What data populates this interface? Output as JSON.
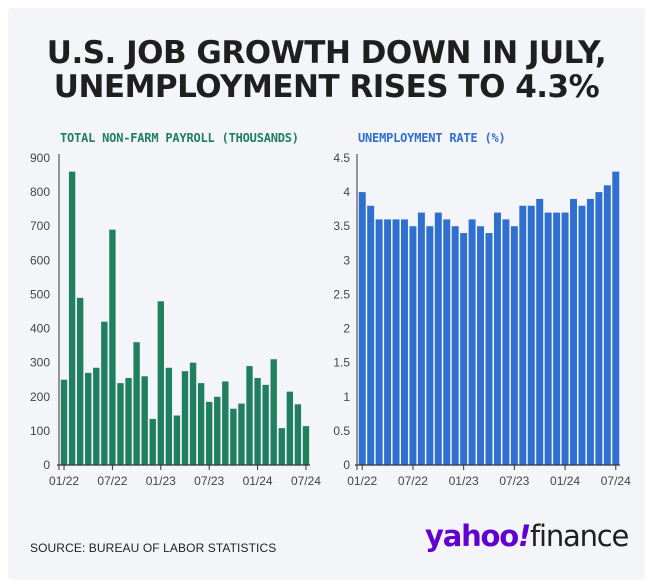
{
  "headline": {
    "line1": "U.S. JOB GROWTH DOWN IN JULY,",
    "line2": "UNEMPLOYMENT RISES TO 4.3%"
  },
  "footer": {
    "source": "SOURCE: BUREAU OF LABOR STATISTICS",
    "brand_yahoo": "yahoo",
    "brand_bang": "!",
    "brand_finance": "finance"
  },
  "colors": {
    "payroll": "#1f7f5f",
    "unemployment": "#2f6fd0",
    "axis": "#333333"
  },
  "chart_data": [
    {
      "type": "bar",
      "title": "TOTAL NON-FARM PAYROLL (THOUSANDS)",
      "xlabel": "",
      "ylabel": "",
      "ylim": [
        0,
        900
      ],
      "yticks": [
        0,
        100,
        200,
        300,
        400,
        500,
        600,
        700,
        800,
        900
      ],
      "xtick_labels": [
        "01/22",
        "07/22",
        "01/23",
        "07/23",
        "01/24",
        "07/24"
      ],
      "xtick_indices": [
        0,
        6,
        12,
        18,
        24,
        30
      ],
      "categories": [
        "01/22",
        "02/22",
        "03/22",
        "04/22",
        "05/22",
        "06/22",
        "07/22",
        "08/22",
        "09/22",
        "10/22",
        "11/22",
        "12/22",
        "01/23",
        "02/23",
        "03/23",
        "04/23",
        "05/23",
        "06/23",
        "07/23",
        "08/23",
        "09/23",
        "10/23",
        "11/23",
        "12/23",
        "01/24",
        "02/24",
        "03/24",
        "04/24",
        "05/24",
        "06/24",
        "07/24"
      ],
      "values": [
        250,
        860,
        490,
        270,
        285,
        420,
        690,
        240,
        255,
        360,
        260,
        135,
        480,
        285,
        145,
        275,
        300,
        240,
        185,
        200,
        245,
        165,
        180,
        290,
        255,
        235,
        310,
        108,
        215,
        178,
        114
      ]
    },
    {
      "type": "bar",
      "title": "UNEMPLOYMENT RATE (%)",
      "xlabel": "",
      "ylabel": "",
      "ylim": [
        0,
        4.5
      ],
      "yticks": [
        0,
        0.5,
        1,
        1.5,
        2,
        2.5,
        3,
        3.5,
        4,
        4.5
      ],
      "xtick_labels": [
        "01/22",
        "07/22",
        "01/23",
        "07/23",
        "01/24",
        "07/24"
      ],
      "xtick_indices": [
        0,
        6,
        12,
        18,
        24,
        30
      ],
      "categories": [
        "01/22",
        "02/22",
        "03/22",
        "04/22",
        "05/22",
        "06/22",
        "07/22",
        "08/22",
        "09/22",
        "10/22",
        "11/22",
        "12/22",
        "01/23",
        "02/23",
        "03/23",
        "04/23",
        "05/23",
        "06/23",
        "07/23",
        "08/23",
        "09/23",
        "10/23",
        "11/23",
        "12/23",
        "01/24",
        "02/24",
        "03/24",
        "04/24",
        "05/24",
        "06/24",
        "07/24"
      ],
      "values": [
        4.0,
        3.8,
        3.6,
        3.6,
        3.6,
        3.6,
        3.5,
        3.7,
        3.5,
        3.7,
        3.6,
        3.5,
        3.4,
        3.6,
        3.5,
        3.4,
        3.7,
        3.6,
        3.5,
        3.8,
        3.8,
        3.9,
        3.7,
        3.7,
        3.7,
        3.9,
        3.8,
        3.9,
        4.0,
        4.1,
        4.3
      ]
    }
  ]
}
